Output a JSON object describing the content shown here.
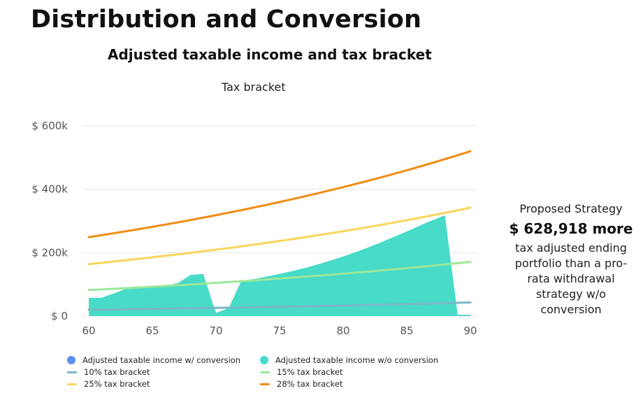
{
  "page": {
    "title": "Distribution and Conversion"
  },
  "side_panel": {
    "heading": "Proposed Strategy",
    "amount": "$ 628,918 more",
    "description_lines": [
      "tax adjusted ending",
      "portfolio than a pro-",
      "rata withdrawal",
      "strategy w/o",
      "conversion"
    ]
  },
  "chart_data": {
    "type": "area",
    "title": "Adjusted taxable income and tax bracket",
    "subtitle": "Tax bracket",
    "xlabel": "",
    "ylabel": "",
    "xlim": [
      60,
      90
    ],
    "ylim": [
      0,
      600000
    ],
    "x_ticks": [
      60,
      65,
      70,
      75,
      80,
      85,
      90
    ],
    "y_ticks": [
      0,
      200000,
      400000,
      600000
    ],
    "y_tick_labels": [
      "$ 0",
      "$ 200k",
      "$ 400k",
      "$ 600k"
    ],
    "grid": true,
    "legend_position": "bottom",
    "series": [
      {
        "name": "Adjusted taxable income w/ conversion",
        "kind": "area",
        "color": "#5b8def",
        "x": [],
        "y": []
      },
      {
        "name": "Adjusted taxable income w/o conversion",
        "kind": "area",
        "color": "#48dbc8",
        "x": [
          60,
          61,
          62,
          63,
          64,
          65,
          66,
          67,
          68,
          69,
          70,
          71,
          72,
          73,
          74,
          75,
          76,
          77,
          78,
          79,
          80,
          81,
          82,
          83,
          84,
          85,
          86,
          87,
          88,
          89,
          90
        ],
        "y": [
          57000,
          58000,
          72000,
          87000,
          92000,
          93000,
          95000,
          104000,
          130000,
          133000,
          10000,
          25000,
          112000,
          117000,
          125000,
          133000,
          142000,
          152000,
          163000,
          175000,
          188000,
          202000,
          217000,
          233000,
          250000,
          267000,
          285000,
          302000,
          318000,
          4000,
          4000
        ]
      },
      {
        "name": "10% tax bracket",
        "kind": "line",
        "color": "#79b8c6",
        "x": [
          60,
          90
        ],
        "y": [
          20000,
          43000
        ]
      },
      {
        "name": "15% tax bracket",
        "kind": "line",
        "color": "#9be89a",
        "x": [
          60,
          90
        ],
        "y": [
          82000,
          171000
        ]
      },
      {
        "name": "25% tax bracket",
        "kind": "line",
        "color": "#fad55c",
        "x": [
          60,
          90
        ],
        "y": [
          164000,
          342000
        ]
      },
      {
        "name": "28% tax bracket",
        "kind": "line",
        "color": "#f08c14",
        "x": [
          60,
          90
        ],
        "y": [
          249000,
          520000
        ]
      }
    ]
  }
}
